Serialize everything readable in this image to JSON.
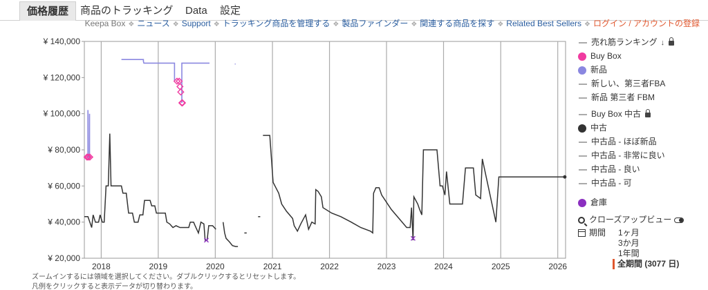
{
  "tabs": [
    "価格履歴",
    "商品のトラッキング",
    "Data",
    "設定"
  ],
  "links": {
    "keepa_box": "Keepa Box",
    "news": "ニュース",
    "support": "Support",
    "manage": "トラッキング商品を管理する",
    "finder": "製品ファインダー",
    "related": "関連する商品を探す",
    "bestsellers": "Related Best Sellers",
    "login": "ログイン / アカウントの登録"
  },
  "legend": [
    {
      "label": "売れ筋ランキング",
      "marker": "dash",
      "color": "#aaaaaa",
      "icon": "sort-icon",
      "lock": true
    },
    {
      "label": "Buy Box",
      "marker": "dot",
      "color": "#f03ba0"
    },
    {
      "label": "新品",
      "marker": "dot",
      "color": "#8a87e0"
    },
    {
      "label": "新しい、第三者FBA",
      "marker": "dash",
      "color": "#aaaaaa"
    },
    {
      "label": "新品 第三者 FBM",
      "marker": "dash",
      "color": "#aaaaaa"
    },
    {
      "label": "Buy Box 中古",
      "marker": "dash",
      "color": "#aaaaaa",
      "lock": true
    },
    {
      "label": "中古",
      "marker": "dot",
      "color": "#333333"
    },
    {
      "label": "中古品 - ほぼ新品",
      "marker": "dash",
      "color": "#aaaaaa"
    },
    {
      "label": "中古品 - 非常に良い",
      "marker": "dash",
      "color": "#aaaaaa"
    },
    {
      "label": "中古品 - 良い",
      "marker": "dash",
      "color": "#aaaaaa"
    },
    {
      "label": "中古品 - 可",
      "marker": "dash",
      "color": "#aaaaaa"
    },
    {
      "label": "倉庫",
      "marker": "dot",
      "color": "#8b2fc0"
    }
  ],
  "closeup": {
    "label": "クローズアップビュー"
  },
  "period": {
    "label": "期間",
    "options": [
      "1ヶ月",
      "3か月",
      "1年間",
      "全期間 (3077 日)"
    ],
    "active": 3
  },
  "hints": [
    "ズームインするには領域を選択してください。ダブルクリックするとリセットします。",
    "凡例をクリックすると表示データが切り替わります。"
  ],
  "chart_data": {
    "type": "line",
    "x_range": [
      "2017-09-15",
      "2026-02-20"
    ],
    "ylim": [
      20000,
      140000
    ],
    "yticks": [
      20000,
      40000,
      60000,
      80000,
      100000,
      120000,
      140000
    ],
    "ytick_labels": [
      "¥ 20,000",
      "¥ 40,000",
      "¥ 60,000",
      "¥ 80,000",
      "¥ 100,000",
      "¥ 120,000",
      "¥ 140,000"
    ],
    "xtick_labels": [
      "2018",
      "2019",
      "2020",
      "2021",
      "2022",
      "2023",
      "2024",
      "2025",
      "2026"
    ],
    "series": [
      {
        "name": "新品",
        "color": "#8a87e0",
        "segments": [
          [
            [
              "2017-10-08",
              76000
            ],
            [
              "2017-10-08",
              102000
            ],
            [
              "2017-10-10",
              76000
            ],
            [
              "2017-10-18",
              76000
            ],
            [
              "2017-10-18",
              100000
            ]
          ],
          [
            [
              "2018-05-10",
              130000
            ],
            [
              "2018-09-28",
              130000
            ],
            [
              "2018-09-28",
              129000
            ],
            [
              "2018-10-01",
              128000
            ],
            [
              "2019-04-15",
              128000
            ],
            [
              "2019-04-15",
              118000
            ]
          ],
          [
            [
              "2019-06-01",
              106000
            ],
            [
              "2019-06-01",
              128000
            ],
            [
              "2019-11-25",
              128000
            ]
          ],
          [
            [
              "2020-05-05",
              127500
            ],
            [
              "2020-05-10",
              127500
            ]
          ]
        ]
      },
      {
        "name": "Buy Box",
        "color": "#f03ba0",
        "points": [
          [
            "2017-10-02",
            76000
          ],
          [
            "2017-10-10",
            76000
          ],
          [
            "2017-10-20",
            76000
          ],
          [
            "2019-05-01",
            118000
          ],
          [
            "2019-05-15",
            118000
          ],
          [
            "2019-05-20",
            115000
          ],
          [
            "2019-05-25",
            112000
          ],
          [
            "2019-06-01",
            106000
          ],
          [
            "2019-06-05",
            106000
          ]
        ]
      },
      {
        "name": "中古",
        "color": "#333333",
        "segments": [
          [
            [
              "2017-09-15",
              43000
            ],
            [
              "2017-10-08",
              43000
            ],
            [
              "2017-10-20",
              40000
            ],
            [
              "2017-11-01",
              37000
            ],
            [
              "2017-11-10",
              44000
            ],
            [
              "2017-11-25",
              40000
            ],
            [
              "2017-12-15",
              40000
            ],
            [
              "2017-12-25",
              44000
            ],
            [
              "2018-01-08",
              40000
            ],
            [
              "2018-01-20",
              40000
            ],
            [
              "2018-02-01",
              60000
            ],
            [
              "2018-02-15",
              60000
            ],
            [
              "2018-02-25",
              89000
            ],
            [
              "2018-03-05",
              60000
            ],
            [
              "2018-05-10",
              60000
            ],
            [
              "2018-05-20",
              56000
            ],
            [
              "2018-06-10",
              56000
            ],
            [
              "2018-06-25",
              45000
            ],
            [
              "2018-07-20",
              45000
            ],
            [
              "2018-08-01",
              40000
            ],
            [
              "2018-08-25",
              40000
            ],
            [
              "2018-09-05",
              44000
            ],
            [
              "2018-09-25",
              44000
            ],
            [
              "2018-10-05",
              52000
            ],
            [
              "2018-11-10",
              52000
            ],
            [
              "2018-11-20",
              49000
            ],
            [
              "2018-12-10",
              49000
            ],
            [
              "2018-12-20",
              45000
            ],
            [
              "2019-02-15",
              45000
            ],
            [
              "2019-02-25",
              40000
            ],
            [
              "2019-03-15",
              39000
            ],
            [
              "2019-04-05",
              37000
            ],
            [
              "2019-04-25",
              38000
            ],
            [
              "2019-05-20",
              37000
            ],
            [
              "2019-07-15",
              37000
            ],
            [
              "2019-07-25",
              40000
            ],
            [
              "2019-08-15",
              40000
            ],
            [
              "2019-08-25",
              38000
            ],
            [
              "2019-09-15",
              34000
            ],
            [
              "2019-10-01",
              40000
            ],
            [
              "2019-10-20",
              39000
            ],
            [
              "2019-10-28",
              30000
            ],
            [
              "2019-11-10",
              30000
            ],
            [
              "2019-11-20",
              38000
            ],
            [
              "2019-12-15",
              38000
            ],
            [
              "2020-01-05",
              36000
            ]
          ],
          [
            [
              "2020-02-20",
              40000
            ],
            [
              "2020-03-01",
              34000
            ],
            [
              "2020-03-10",
              31000
            ],
            [
              "2020-04-01",
              29000
            ],
            [
              "2020-04-20",
              27000
            ],
            [
              "2020-05-10",
              26500
            ],
            [
              "2020-05-25",
              26500
            ]
          ],
          [
            [
              "2020-07-05",
              34000
            ],
            [
              "2020-07-20",
              34000
            ]
          ],
          [
            [
              "2020-10-01",
              43000
            ],
            [
              "2020-10-15",
              43000
            ]
          ],
          [
            [
              "2020-11-01",
              88000
            ],
            [
              "2020-12-15",
              88000
            ],
            [
              "2021-01-05",
              62000
            ],
            [
              "2021-02-10",
              56000
            ],
            [
              "2021-03-01",
              50000
            ],
            [
              "2021-04-01",
              46000
            ],
            [
              "2021-05-10",
              42000
            ],
            [
              "2021-05-20",
              38000
            ],
            [
              "2021-06-10",
              35000
            ],
            [
              "2021-07-01",
              39000
            ],
            [
              "2021-08-01",
              44000
            ],
            [
              "2021-08-20",
              36000
            ],
            [
              "2021-09-10",
              40000
            ],
            [
              "2021-10-01",
              39000
            ],
            [
              "2021-10-05",
              58000
            ],
            [
              "2021-10-20",
              57000
            ],
            [
              "2021-11-10",
              54000
            ],
            [
              "2021-11-20",
              48000
            ],
            [
              "2022-01-15",
              45000
            ],
            [
              "2022-03-15",
              43000
            ],
            [
              "2022-05-20",
              40000
            ],
            [
              "2022-07-20",
              37000
            ],
            [
              "2022-09-20",
              35000
            ],
            [
              "2022-10-05",
              34000
            ],
            [
              "2022-10-10",
              56000
            ],
            [
              "2022-10-25",
              59000
            ],
            [
              "2022-11-15",
              59000
            ],
            [
              "2022-12-01",
              55000
            ],
            [
              "2023-02-01",
              47000
            ],
            [
              "2023-04-01",
              41000
            ],
            [
              "2023-05-10",
              37000
            ],
            [
              "2023-06-01",
              37000
            ],
            [
              "2023-06-10",
              48000
            ],
            [
              "2023-06-20",
              30000
            ],
            [
              "2023-06-25",
              54000
            ],
            [
              "2023-07-20",
              50000
            ],
            [
              "2023-08-01",
              47000
            ],
            [
              "2023-08-15",
              44000
            ],
            [
              "2023-08-25",
              80000
            ],
            [
              "2023-11-20",
              80000
            ],
            [
              "2023-12-10",
              60000
            ],
            [
              "2023-12-25",
              60000
            ],
            [
              "2024-01-10",
              55000
            ],
            [
              "2024-01-20",
              68000
            ],
            [
              "2024-02-10",
              50000
            ],
            [
              "2024-05-01",
              50000
            ],
            [
              "2024-05-20",
              70000
            ],
            [
              "2024-07-10",
              70000
            ],
            [
              "2024-07-25",
              55000
            ],
            [
              "2024-08-25",
              53000
            ],
            [
              "2024-09-05",
              75000
            ],
            [
              "2024-12-01",
              40000
            ],
            [
              "2024-12-20",
              65000
            ],
            [
              "2026-02-15",
              65000
            ]
          ]
        ]
      },
      {
        "name": "倉庫",
        "color": "#8b2fc0",
        "points": [
          [
            "2019-11-05",
            30000
          ],
          [
            "2023-06-20",
            31000
          ]
        ]
      }
    ]
  }
}
